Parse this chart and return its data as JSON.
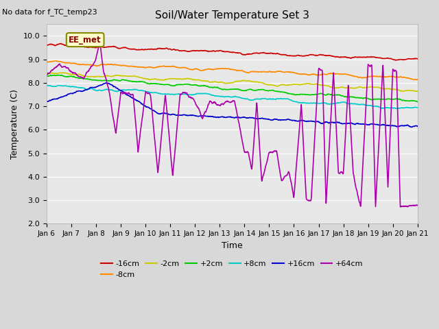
{
  "title": "Soil/Water Temperature Set 3",
  "no_data_text": "No data for f_TC_temp23",
  "xlabel": "Time",
  "ylabel": "Temperature (C)",
  "ylim": [
    2.0,
    10.5
  ],
  "yticks": [
    2.0,
    3.0,
    4.0,
    5.0,
    6.0,
    7.0,
    8.0,
    9.0,
    10.0
  ],
  "xtick_labels": [
    "Jan 6",
    "Jan 7",
    "Jan 8",
    "Jan 9",
    "Jan 10",
    "Jan 11",
    "Jan 12",
    "Jan 13",
    "Jan 14",
    "Jan 15",
    "Jan 16",
    "Jan 17",
    "Jan 18",
    "Jan 19",
    "Jan 20",
    "Jan 21"
  ],
  "series": [
    {
      "label": "-16cm",
      "color": "#cc0000",
      "lw": 1.2
    },
    {
      "label": "-8cm",
      "color": "#ff8800",
      "lw": 1.2
    },
    {
      "label": "-2cm",
      "color": "#cccc00",
      "lw": 1.2
    },
    {
      "label": "+2cm",
      "color": "#00cc00",
      "lw": 1.2
    },
    {
      "label": "+8cm",
      "color": "#00cccc",
      "lw": 1.2
    },
    {
      "label": "+16cm",
      "color": "#0000cc",
      "lw": 1.2
    },
    {
      "label": "+64cm",
      "color": "#aa00aa",
      "lw": 1.2
    }
  ],
  "legend_box": {
    "label": "EE_met",
    "facecolor": "#ffffcc",
    "edgecolor": "#888800"
  },
  "fig_facecolor": "#d8d8d8",
  "ax_facecolor": "#e8e8e8",
  "grid_color": "#ffffff",
  "n_points": 1440
}
